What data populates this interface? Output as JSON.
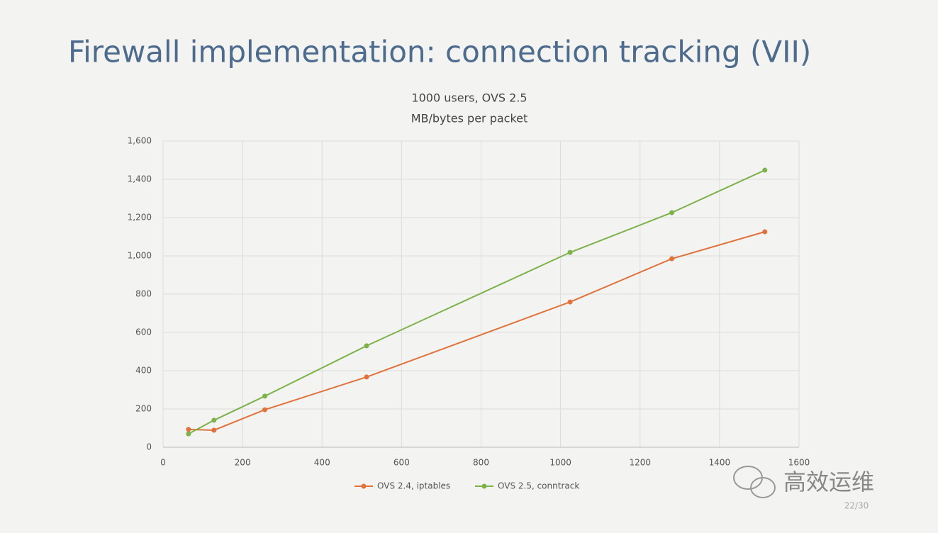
{
  "slide_title": "Firewall implementation: connection tracking (VII)",
  "watermark": "高效运维",
  "page_number": "22/30",
  "chart_data": {
    "type": "line",
    "title": "1000 users, OVS 2.5",
    "subtitle": "MB/bytes per packet",
    "x": [
      64,
      128,
      256,
      512,
      1024,
      1280,
      1514
    ],
    "series": [
      {
        "name": "OVS 2.4, iptables",
        "color": "#e0723c",
        "values": [
          93,
          89,
          196,
          367,
          759,
          985,
          1126
        ]
      },
      {
        "name": "OVS 2.5, conntrack",
        "color": "#7db24a",
        "values": [
          70,
          141,
          267,
          530,
          1018,
          1226,
          1448
        ]
      }
    ],
    "xlim": [
      0,
      1600
    ],
    "xticks": [
      0,
      200,
      400,
      600,
      800,
      1000,
      1200,
      1400,
      1600
    ],
    "ylim": [
      0,
      1600
    ],
    "yticks": [
      0,
      200,
      400,
      600,
      800,
      {
        "value": 1000,
        "label": "1,000"
      },
      {
        "value": 1200,
        "label": "1,200"
      },
      {
        "value": 1400,
        "label": "1,400"
      },
      {
        "value": 1600,
        "label": "1,600"
      }
    ],
    "grid": true,
    "legend": "bottom"
  }
}
